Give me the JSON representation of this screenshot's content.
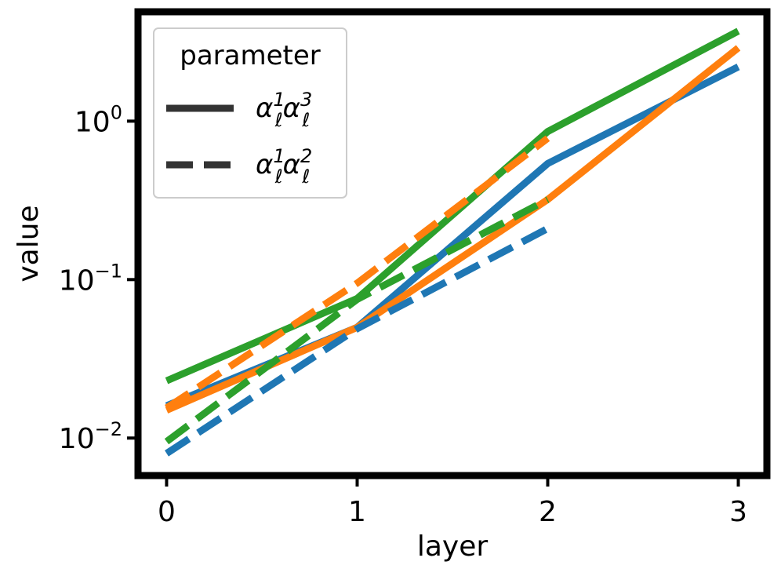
{
  "chart_data": {
    "type": "line",
    "xlabel": "layer",
    "ylabel": "value",
    "yscale": "log",
    "x": [
      0,
      1,
      2,
      3
    ],
    "xticks": [
      "0",
      "1",
      "2",
      "3"
    ],
    "yticks": [
      {
        "value": 0.01,
        "base": "10",
        "exp": "−2"
      },
      {
        "value": 0.1,
        "base": "10",
        "exp": "−1"
      },
      {
        "value": 1,
        "base": "10",
        "exp": "0"
      }
    ],
    "xlim": [
      -0.15,
      3.15
    ],
    "ylim": [
      0.0058,
      4.9
    ],
    "grid": false,
    "legend": {
      "title": "parameter",
      "placement": "top-left",
      "entries": [
        {
          "style": "solid",
          "symbol": "α",
          "sub": "ℓ",
          "sup1": "1",
          "sup2": "3"
        },
        {
          "style": "dashed",
          "symbol": "α",
          "sub": "ℓ",
          "sup1": "1",
          "sup2": "2"
        }
      ]
    },
    "colors": {
      "blue": "#1f77b4",
      "orange": "#ff7f0e",
      "green": "#2ca02c",
      "legend": "#333333"
    },
    "series": [
      {
        "color": "#1f77b4",
        "style": "solid",
        "x": [
          0,
          1,
          2,
          3
        ],
        "values": [
          0.016,
          0.05,
          0.54,
          2.2
        ]
      },
      {
        "color": "#ff7f0e",
        "style": "solid",
        "x": [
          0,
          1,
          2,
          3
        ],
        "values": [
          0.015,
          0.05,
          0.32,
          2.9
        ]
      },
      {
        "color": "#2ca02c",
        "style": "solid",
        "x": [
          0,
          1,
          2,
          3
        ],
        "values": [
          0.023,
          0.076,
          0.86,
          3.7
        ]
      },
      {
        "color": "#1f77b4",
        "style": "dashed",
        "x": [
          0,
          1,
          2
        ],
        "values": [
          0.008,
          0.049,
          0.21
        ]
      },
      {
        "color": "#ff7f0e",
        "style": "dashed",
        "x": [
          0,
          1,
          2
        ],
        "values": [
          0.0155,
          0.095,
          0.78
        ]
      },
      {
        "color": "#2ca02c",
        "style": "dashed",
        "x": [
          0,
          1,
          2
        ],
        "values": [
          0.0095,
          0.075,
          0.32
        ]
      }
    ]
  }
}
